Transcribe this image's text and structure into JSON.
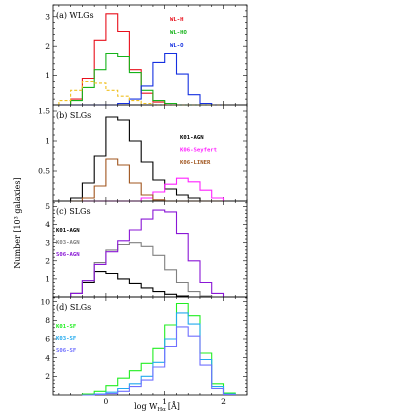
{
  "figure": {
    "ylabel": "Number [10³ galaxies]",
    "xlabel_log": "log W",
    "xlabel_sub": "Hα",
    "xlabel_unit": "[Å]"
  },
  "colors": {
    "wl_h": "#e8101c",
    "wl_ho": "#16b31a",
    "wl_o": "#1530e0",
    "wl_dash": "#f0c020",
    "k01_agn": "#000000",
    "k06_seyfert": "#ff22ff",
    "k06_liner": "#a0551e",
    "k03_agn": "#808080",
    "s06_agn": "#8a17d6",
    "k01_sf": "#22ee22",
    "k03_sf": "#22aaee",
    "s06_sf": "#7070ff"
  },
  "chart_data": [
    {
      "type": "line",
      "panel": "a",
      "title": "(a) WLGs",
      "xlim": [
        -0.9,
        2.4
      ],
      "ylim": [
        0,
        3.4
      ],
      "xticks": [
        0,
        1,
        2
      ],
      "yticks": [
        1,
        2,
        3
      ],
      "x": [
        -0.7,
        -0.5,
        -0.3,
        -0.1,
        0.1,
        0.3,
        0.5,
        0.7,
        0.9,
        1.1,
        1.3,
        1.5,
        1.7,
        1.9
      ],
      "series": [
        {
          "name": "WL-H",
          "color": "wl_h",
          "values": [
            0.0,
            0.2,
            0.9,
            2.2,
            3.1,
            2.5,
            1.2,
            0.4,
            0.1,
            0.0,
            0.0,
            0.0,
            0.0,
            0.0
          ]
        },
        {
          "name": "WL-HO",
          "color": "wl_ho",
          "values": [
            0.0,
            0.15,
            0.6,
            1.2,
            1.75,
            1.65,
            1.1,
            0.5,
            0.15,
            0.05,
            0.0,
            0.0,
            0.0,
            0.0
          ]
        },
        {
          "name": "WL-O",
          "color": "wl_o",
          "values": [
            0.0,
            0.0,
            0.0,
            0.0,
            0.0,
            0.05,
            0.2,
            0.65,
            1.45,
            1.75,
            1.05,
            0.35,
            0.05,
            0.0
          ]
        },
        {
          "name": "",
          "color": "wl_dash",
          "dashed": true,
          "values": [
            0.15,
            0.5,
            0.8,
            0.75,
            0.5,
            0.3,
            0.15,
            0.05,
            0.0,
            0.0,
            0.0,
            0.0,
            0.0,
            0.0
          ]
        }
      ]
    },
    {
      "type": "line",
      "panel": "b",
      "title": "(b) SLGs",
      "xlim": [
        -0.9,
        2.4
      ],
      "ylim": [
        0,
        1.6
      ],
      "xticks": [
        0,
        1,
        2
      ],
      "yticks": [
        0.5,
        1,
        1.5
      ],
      "x": [
        -0.5,
        -0.3,
        -0.1,
        0.1,
        0.3,
        0.5,
        0.7,
        0.9,
        1.1,
        1.3,
        1.5,
        1.7,
        1.9
      ],
      "series": [
        {
          "name": "K01-AGN",
          "color": "k01_agn",
          "values": [
            0.05,
            0.3,
            0.75,
            1.4,
            1.35,
            1.0,
            0.65,
            0.35,
            0.2,
            0.1,
            0.05,
            0.0,
            0.0
          ]
        },
        {
          "name": "K06-Seyfert",
          "color": "k06_seyfert",
          "values": [
            0.0,
            0.0,
            0.0,
            0.0,
            0.0,
            0.0,
            0.05,
            0.15,
            0.28,
            0.38,
            0.32,
            0.18,
            0.05
          ]
        },
        {
          "name": "K06-LINER",
          "color": "k06_liner",
          "values": [
            0.0,
            0.05,
            0.25,
            0.7,
            0.6,
            0.3,
            0.1,
            0.02,
            0.0,
            0.0,
            0.0,
            0.0,
            0.0
          ]
        }
      ]
    },
    {
      "type": "line",
      "panel": "c",
      "title": "(c) SLGs",
      "xlim": [
        -0.9,
        2.4
      ],
      "ylim": [
        0,
        5.3
      ],
      "xticks": [
        0,
        1,
        2
      ],
      "yticks": [
        1,
        2,
        3,
        4,
        5
      ],
      "x": [
        -0.5,
        -0.3,
        -0.1,
        0.1,
        0.3,
        0.5,
        0.7,
        0.9,
        1.1,
        1.3,
        1.5,
        1.7,
        1.9
      ],
      "series": [
        {
          "name": "K01-AGN",
          "color": "k01_agn",
          "values": [
            0.2,
            0.8,
            1.4,
            1.3,
            1.0,
            0.75,
            0.5,
            0.3,
            0.15,
            0.05,
            0.0,
            0.0,
            0.0
          ]
        },
        {
          "name": "K03-AGN",
          "color": "k03_agn",
          "values": [
            0.2,
            0.9,
            1.9,
            2.6,
            2.9,
            3.0,
            2.8,
            2.3,
            1.5,
            0.8,
            0.3,
            0.05,
            0.0
          ]
        },
        {
          "name": "S06-AGN",
          "color": "s06_agn",
          "values": [
            0.2,
            0.9,
            1.8,
            2.5,
            3.1,
            3.7,
            4.3,
            4.8,
            4.7,
            3.5,
            2.0,
            0.8,
            0.2
          ]
        }
      ]
    },
    {
      "type": "line",
      "panel": "d",
      "title": "(d) SLGs",
      "xlim": [
        -0.9,
        2.4
      ],
      "ylim": [
        0,
        10.5
      ],
      "xticks": [
        0,
        1,
        2
      ],
      "yticks": [
        2,
        4,
        6,
        8,
        10
      ],
      "x": [
        -0.3,
        -0.1,
        0.1,
        0.3,
        0.5,
        0.7,
        0.9,
        1.1,
        1.3,
        1.5,
        1.7,
        1.9,
        2.1
      ],
      "series": [
        {
          "name": "K01-SF",
          "color": "k01_sf",
          "values": [
            0.1,
            0.4,
            1.0,
            1.8,
            2.6,
            3.4,
            5.0,
            7.5,
            9.8,
            8.5,
            4.5,
            1.2,
            0.2
          ]
        },
        {
          "name": "K03-SF",
          "color": "k03_sf",
          "values": [
            0.0,
            0.1,
            0.3,
            0.7,
            1.2,
            2.0,
            3.5,
            6.0,
            8.8,
            7.6,
            3.8,
            0.9,
            0.1
          ]
        },
        {
          "name": "S06-SF",
          "color": "s06_sf",
          "values": [
            0.0,
            0.05,
            0.15,
            0.4,
            0.9,
            1.6,
            3.0,
            5.2,
            7.3,
            6.3,
            3.2,
            0.7,
            0.05
          ]
        }
      ]
    }
  ]
}
